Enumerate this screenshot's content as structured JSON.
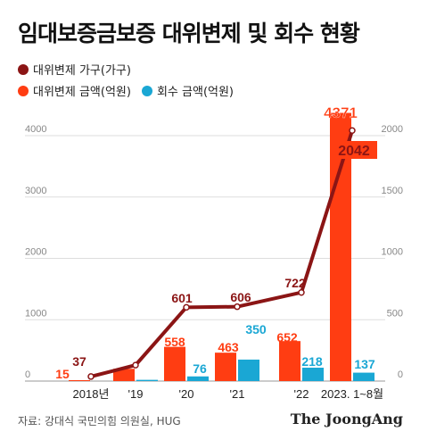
{
  "title": "임대보증금보증 대위변제 및 회수 현황",
  "legend": {
    "households": "대위변제 가구(가구)",
    "amount": "대위변제 금액(억원)",
    "recovered": "회수 금액(억원)"
  },
  "colors": {
    "households": "#8b1515",
    "amount": "#ff3d12",
    "recovered": "#1aa7d4",
    "grid": "#dddddd",
    "axis_text": "#888888"
  },
  "source": "자료: 강대식 국민의힘 의원실, HUG",
  "brand": "The JoongAng",
  "chart_data": {
    "type": "bar",
    "categories": [
      "2018년",
      "'19",
      "'20",
      "'21",
      "'22",
      "2023. 1~8월"
    ],
    "left_axis": {
      "ylim": [
        0,
        4000
      ],
      "ticks": [
        "0",
        "1000",
        "2000",
        "3000",
        "4000"
      ]
    },
    "right_axis": {
      "ylim": [
        0,
        2000
      ],
      "ticks": [
        "0",
        "500",
        "1000",
        "1500",
        "2000"
      ]
    },
    "series": [
      {
        "name": "대위변제 금액(억원)",
        "axis": "left",
        "type": "bar",
        "values": [
          15,
          200,
          558,
          463,
          652,
          4371
        ],
        "labels": [
          "15",
          "",
          "558",
          "463",
          "652",
          "4371"
        ]
      },
      {
        "name": "회수 금액(억원)",
        "axis": "left",
        "type": "bar",
        "values": [
          0,
          20,
          76,
          350,
          218,
          137
        ],
        "labels": [
          "",
          "",
          "76",
          "350",
          "218",
          "137"
        ]
      },
      {
        "name": "대위변제 가구(가구)",
        "axis": "right",
        "type": "line",
        "values": [
          37,
          130,
          601,
          606,
          722,
          2042
        ],
        "labels": [
          "37",
          "",
          "601",
          "606",
          "722",
          "2042"
        ]
      }
    ],
    "grid": true
  }
}
